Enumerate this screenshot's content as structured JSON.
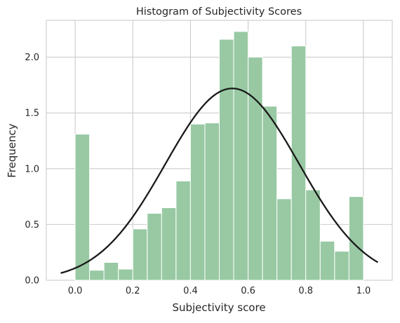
{
  "chart_data": {
    "type": "bar",
    "title": "Histogram of Subjectivity Scores",
    "xlabel": "Subjectivity score",
    "ylabel": "Frequency",
    "xlim": [
      -0.1,
      1.1
    ],
    "ylim": [
      0,
      2.33
    ],
    "xticks": [
      "0.0",
      "0.2",
      "0.4",
      "0.6",
      "0.8",
      "1.0"
    ],
    "yticks": [
      "0.0",
      "0.5",
      "1.0",
      "1.5",
      "2.0"
    ],
    "grid": true,
    "bin_width": 0.05,
    "bins": [
      {
        "start": 0.0,
        "value": 1.31
      },
      {
        "start": 0.05,
        "value": 0.09
      },
      {
        "start": 0.1,
        "value": 0.16
      },
      {
        "start": 0.15,
        "value": 0.1
      },
      {
        "start": 0.2,
        "value": 0.46
      },
      {
        "start": 0.25,
        "value": 0.6
      },
      {
        "start": 0.3,
        "value": 0.65
      },
      {
        "start": 0.35,
        "value": 0.89
      },
      {
        "start": 0.4,
        "value": 1.4
      },
      {
        "start": 0.45,
        "value": 1.41
      },
      {
        "start": 0.5,
        "value": 2.16
      },
      {
        "start": 0.55,
        "value": 2.23
      },
      {
        "start": 0.6,
        "value": 2.0
      },
      {
        "start": 0.65,
        "value": 1.56
      },
      {
        "start": 0.7,
        "value": 0.73
      },
      {
        "start": 0.75,
        "value": 2.1
      },
      {
        "start": 0.8,
        "value": 0.81
      },
      {
        "start": 0.85,
        "value": 0.35
      },
      {
        "start": 0.9,
        "value": 0.26
      },
      {
        "start": 0.95,
        "value": 0.75
      }
    ],
    "curve": {
      "type": "normal-pdf",
      "mean": 0.545,
      "std": 0.232,
      "x_range": [
        -0.05,
        1.05
      ]
    },
    "colors": {
      "bar_fill": "#98c9a3",
      "bar_edge": "#ffffff",
      "curve": "#1a1a1a",
      "grid": "#cccccc",
      "background": "#ffffff"
    }
  }
}
